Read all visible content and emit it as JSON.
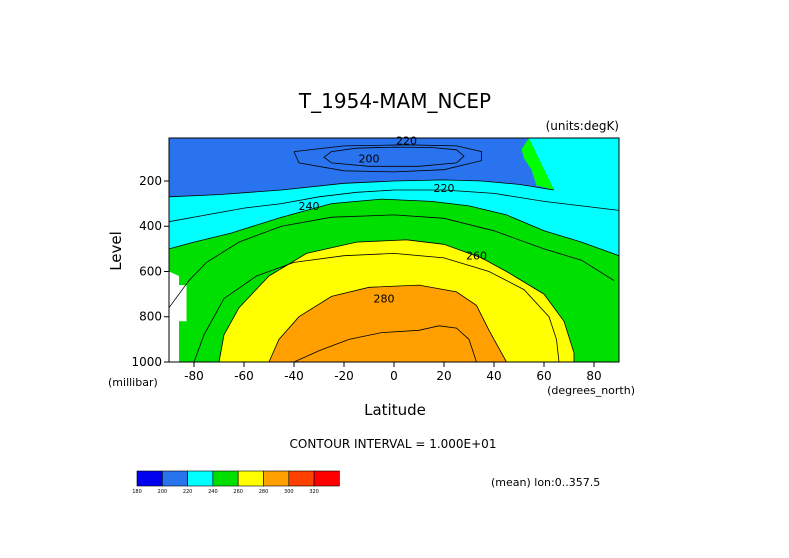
{
  "chart_data": {
    "type": "contour",
    "title": "T_1954-MAM_NCEP",
    "units_label": "(units:degK)",
    "xlabel": "Latitude",
    "ylabel": "Level",
    "x_unit_label": "(degrees_north)",
    "y_unit_label": "(millibar)",
    "x_ticks": [
      -80,
      -60,
      -40,
      -20,
      0,
      20,
      40,
      60,
      80
    ],
    "x_tick_labels": [
      "-80",
      "-60",
      "-40",
      "-20",
      "0",
      "20",
      "40",
      "60",
      "80"
    ],
    "y_ticks": [
      200,
      400,
      600,
      800,
      1000
    ],
    "y_tick_labels": [
      "200",
      "400",
      "600",
      "800",
      "1000"
    ],
    "xlim": [
      -90,
      90
    ],
    "ylim": [
      1000,
      10
    ],
    "y_inverted": true,
    "contour_interval_text": "CONTOUR INTERVAL = 1.000E+01",
    "contour_labels": [
      {
        "text": "220",
        "lat": 5,
        "lev": 20
      },
      {
        "text": "200",
        "lat": -10,
        "lev": 100
      },
      {
        "text": "220",
        "lat": 20,
        "lev": 230
      },
      {
        "text": "240",
        "lat": -34,
        "lev": 310
      },
      {
        "text": "260",
        "lat": 33,
        "lev": 530
      },
      {
        "text": "280",
        "lat": -4,
        "lev": 720
      }
    ],
    "regions": [
      {
        "name": "band-180-200",
        "color": "#0000ee",
        "points": [
          [
            -25,
            70
          ],
          [
            -15,
            55
          ],
          [
            0,
            50
          ],
          [
            15,
            52
          ],
          [
            25,
            62
          ],
          [
            28,
            90
          ],
          [
            25,
            120
          ],
          [
            10,
            135
          ],
          [
            -10,
            135
          ],
          [
            -25,
            120
          ],
          [
            -28,
            95
          ]
        ]
      },
      {
        "name": "band-200-220",
        "color": "#2a73ee",
        "points": [
          [
            -90,
            10
          ],
          [
            54,
            10
          ],
          [
            51,
            60
          ],
          [
            52,
            100
          ],
          [
            55,
            150
          ],
          [
            57,
            220
          ],
          [
            64,
            240
          ],
          [
            50,
            215
          ],
          [
            35,
            200
          ],
          [
            20,
            195
          ],
          [
            0,
            200
          ],
          [
            -20,
            210
          ],
          [
            -45,
            240
          ],
          [
            -70,
            260
          ],
          [
            -90,
            270
          ]
        ]
      },
      {
        "name": "band-220-240",
        "color": "#00ffff",
        "points": [
          [
            -90,
            270
          ],
          [
            -70,
            260
          ],
          [
            -45,
            240
          ],
          [
            -20,
            210
          ],
          [
            0,
            200
          ],
          [
            20,
            195
          ],
          [
            35,
            200
          ],
          [
            50,
            215
          ],
          [
            64,
            240
          ],
          [
            54,
            10
          ],
          [
            90,
            10
          ],
          [
            90,
            530
          ],
          [
            75,
            470
          ],
          [
            60,
            420
          ],
          [
            45,
            350
          ],
          [
            30,
            310
          ],
          [
            15,
            290
          ],
          [
            -5,
            280
          ],
          [
            -25,
            300
          ],
          [
            -45,
            360
          ],
          [
            -65,
            430
          ],
          [
            -80,
            470
          ],
          [
            -90,
            500
          ]
        ]
      },
      {
        "name": "band-240-260",
        "color": "#00e000",
        "points": [
          [
            -90,
            500
          ],
          [
            -80,
            470
          ],
          [
            -65,
            430
          ],
          [
            -45,
            360
          ],
          [
            -25,
            300
          ],
          [
            -5,
            280
          ],
          [
            15,
            290
          ],
          [
            30,
            310
          ],
          [
            45,
            350
          ],
          [
            60,
            420
          ],
          [
            75,
            470
          ],
          [
            90,
            530
          ],
          [
            90,
            1000
          ],
          [
            -90,
            1000
          ]
        ]
      },
      {
        "name": "band-260-280",
        "color": "#ffff00",
        "points": [
          [
            -70,
            1000
          ],
          [
            -68,
            880
          ],
          [
            -62,
            760
          ],
          [
            -50,
            620
          ],
          [
            -35,
            520
          ],
          [
            -15,
            470
          ],
          [
            5,
            460
          ],
          [
            20,
            480
          ],
          [
            35,
            540
          ],
          [
            45,
            600
          ],
          [
            60,
            700
          ],
          [
            68,
            820
          ],
          [
            72,
            960
          ],
          [
            72,
            1000
          ]
        ]
      },
      {
        "name": "band-280-290",
        "color": "#ffa000",
        "points": [
          [
            -50,
            1000
          ],
          [
            -46,
            900
          ],
          [
            -38,
            800
          ],
          [
            -25,
            710
          ],
          [
            -10,
            670
          ],
          [
            10,
            660
          ],
          [
            25,
            690
          ],
          [
            33,
            750
          ],
          [
            38,
            860
          ],
          [
            42,
            940
          ],
          [
            45,
            1000
          ]
        ]
      },
      {
        "name": "missing-data",
        "color": "#ffffff",
        "points": [
          [
            -90,
            600
          ],
          [
            -86,
            620
          ],
          [
            -86,
            660
          ],
          [
            -83,
            660
          ],
          [
            -83,
            820
          ],
          [
            -86,
            820
          ],
          [
            -86,
            1000
          ],
          [
            -90,
            1000
          ]
        ]
      }
    ],
    "contour_lines": [
      {
        "level": 200,
        "points": [
          [
            -25,
            70
          ],
          [
            -15,
            55
          ],
          [
            0,
            50
          ],
          [
            15,
            52
          ],
          [
            25,
            62
          ],
          [
            28,
            90
          ],
          [
            25,
            120
          ],
          [
            10,
            135
          ],
          [
            -10,
            135
          ],
          [
            -25,
            120
          ],
          [
            -28,
            95
          ],
          [
            -25,
            70
          ]
        ]
      },
      {
        "level": 210,
        "points": [
          [
            -40,
            70
          ],
          [
            -20,
            45
          ],
          [
            5,
            40
          ],
          [
            25,
            45
          ],
          [
            35,
            70
          ],
          [
            35,
            110
          ],
          [
            20,
            150
          ],
          [
            0,
            160
          ],
          [
            -20,
            155
          ],
          [
            -38,
            120
          ],
          [
            -40,
            70
          ]
        ]
      },
      {
        "level": 220,
        "points": [
          [
            -90,
            270
          ],
          [
            -70,
            260
          ],
          [
            -45,
            240
          ],
          [
            -20,
            210
          ],
          [
            0,
            200
          ],
          [
            20,
            195
          ],
          [
            35,
            200
          ],
          [
            50,
            215
          ],
          [
            64,
            240
          ]
        ]
      },
      {
        "level": 230,
        "points": [
          [
            -90,
            380
          ],
          [
            -75,
            350
          ],
          [
            -60,
            320
          ],
          [
            -45,
            300
          ],
          [
            -30,
            270
          ],
          [
            -15,
            250
          ],
          [
            0,
            240
          ],
          [
            20,
            240
          ],
          [
            40,
            255
          ],
          [
            60,
            290
          ],
          [
            75,
            310
          ],
          [
            90,
            330
          ]
        ]
      },
      {
        "level": 240,
        "points": [
          [
            -90,
            500
          ],
          [
            -80,
            470
          ],
          [
            -65,
            430
          ],
          [
            -45,
            360
          ],
          [
            -25,
            300
          ],
          [
            -5,
            280
          ],
          [
            15,
            290
          ],
          [
            30,
            310
          ],
          [
            45,
            350
          ],
          [
            60,
            420
          ],
          [
            75,
            470
          ],
          [
            90,
            530
          ]
        ]
      },
      {
        "level": 250,
        "points": [
          [
            -90,
            760
          ],
          [
            -82,
            640
          ],
          [
            -75,
            560
          ],
          [
            -62,
            470
          ],
          [
            -45,
            400
          ],
          [
            -25,
            360
          ],
          [
            0,
            350
          ],
          [
            20,
            365
          ],
          [
            40,
            420
          ],
          [
            60,
            500
          ],
          [
            75,
            550
          ],
          [
            88,
            640
          ]
        ]
      },
      {
        "level": 260,
        "points": [
          [
            -70,
            1000
          ],
          [
            -68,
            880
          ],
          [
            -62,
            760
          ],
          [
            -50,
            620
          ],
          [
            -35,
            520
          ],
          [
            -15,
            470
          ],
          [
            5,
            460
          ],
          [
            20,
            480
          ],
          [
            35,
            540
          ],
          [
            45,
            600
          ],
          [
            60,
            700
          ],
          [
            68,
            820
          ],
          [
            72,
            960
          ],
          [
            72,
            1000
          ]
        ]
      },
      {
        "level": 270,
        "points": [
          [
            -80,
            1000
          ],
          [
            -76,
            880
          ],
          [
            -68,
            720
          ],
          [
            -55,
            620
          ],
          [
            -40,
            560
          ],
          [
            -20,
            530
          ],
          [
            0,
            520
          ],
          [
            20,
            540
          ],
          [
            38,
            600
          ],
          [
            52,
            680
          ],
          [
            62,
            800
          ],
          [
            65,
            900
          ],
          [
            66,
            1000
          ]
        ]
      },
      {
        "level": 280,
        "points": [
          [
            -50,
            1000
          ],
          [
            -46,
            900
          ],
          [
            -38,
            800
          ],
          [
            -25,
            710
          ],
          [
            -10,
            670
          ],
          [
            10,
            660
          ],
          [
            25,
            690
          ],
          [
            33,
            750
          ],
          [
            38,
            860
          ],
          [
            42,
            940
          ],
          [
            45,
            1000
          ]
        ]
      },
      {
        "level": 290,
        "points": [
          [
            -40,
            1000
          ],
          [
            -30,
            950
          ],
          [
            -18,
            900
          ],
          [
            -5,
            870
          ],
          [
            10,
            860
          ],
          [
            18,
            840
          ],
          [
            25,
            850
          ],
          [
            30,
            900
          ],
          [
            33,
            1000
          ]
        ]
      }
    ],
    "colorbar": {
      "colors": [
        "#0000ee",
        "#2a73ee",
        "#00ffff",
        "#00e000",
        "#ffff00",
        "#ffa000",
        "#ff4000",
        "#ff0000"
      ],
      "labels": [
        "180",
        "200",
        "220",
        "240",
        "260",
        "280",
        "300",
        "320"
      ]
    },
    "footer_text": "(mean) lon:0..357.5"
  }
}
